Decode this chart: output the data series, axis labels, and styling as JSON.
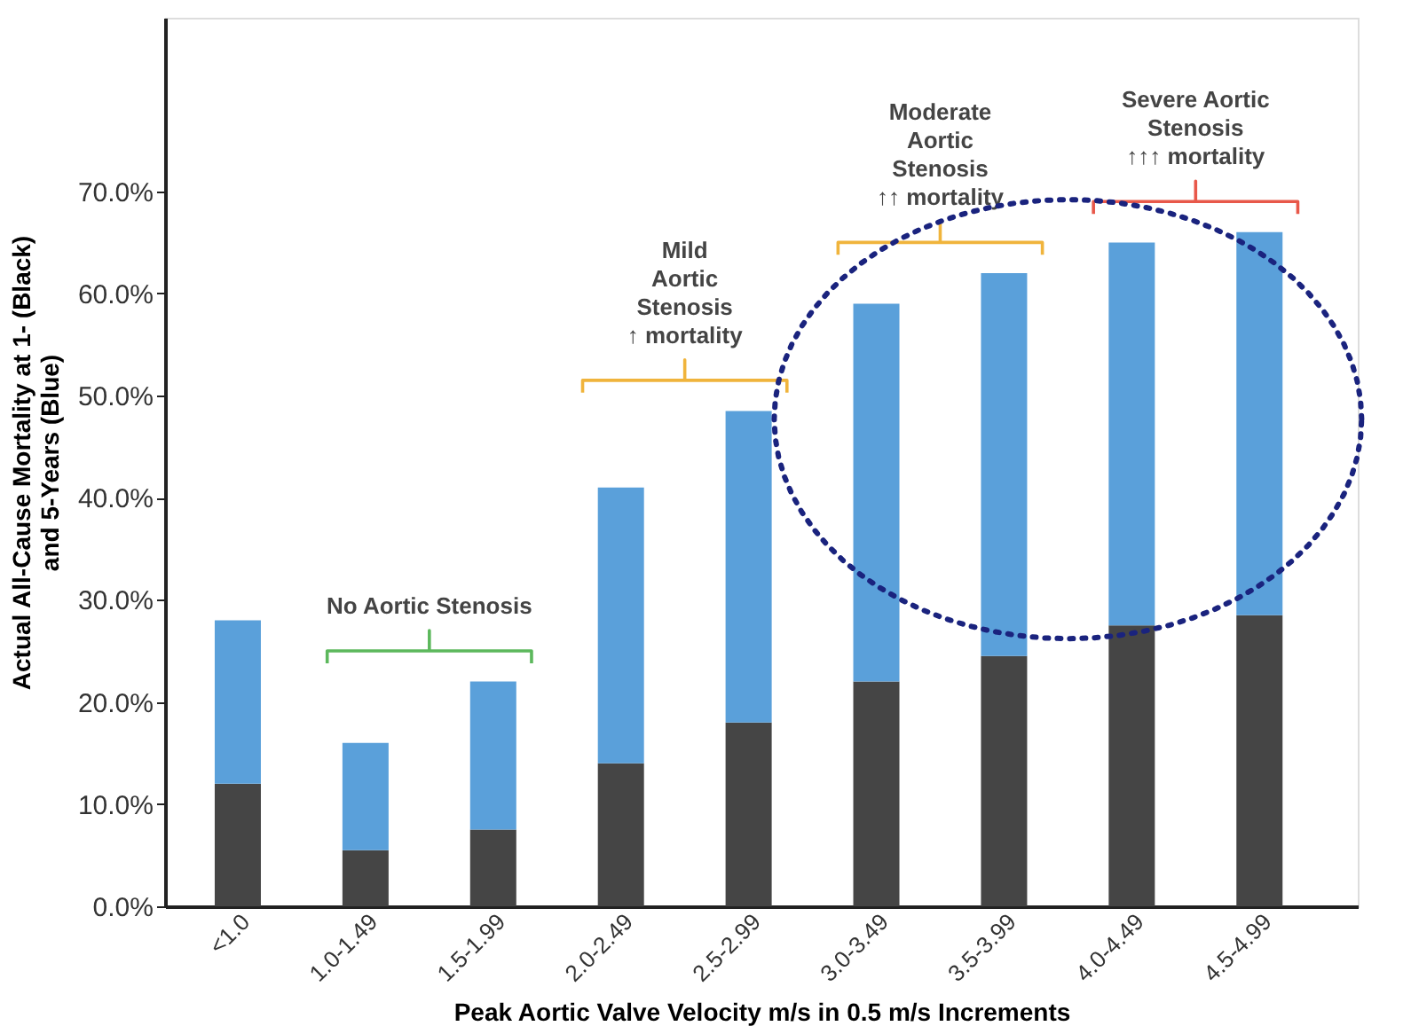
{
  "chart_data": {
    "type": "bar",
    "stacked": true,
    "categories": [
      "<1.0",
      "1.0-1.49",
      "1.5-1.99",
      "2.0-2.49",
      "2.5-2.99",
      "3.0-3.49",
      "3.5-3.99",
      "4.0-4.49",
      "4.5-4.99"
    ],
    "series": [
      {
        "color": "#454545",
        "values": [
          12,
          5.5,
          7.5,
          14,
          18,
          22,
          24.5,
          27.5,
          28.5
        ]
      },
      {
        "color": "#5aa0da",
        "values": [
          16,
          10.5,
          14.5,
          27,
          30.5,
          37,
          37.5,
          37.5,
          37.5
        ]
      }
    ],
    "xlabel": "Peak Aortic Valve Velocity m/s in 0.5 m/s Increments",
    "ylabel": "Actual All-Cause Mortality at 1- (Black)\nand 5-Years (Blue)",
    "ylim": [
      0,
      87
    ],
    "yticks": [
      {
        "value": 0,
        "label": "0.0%"
      },
      {
        "value": 10,
        "label": "10.0%"
      },
      {
        "value": 20,
        "label": "20.0%"
      },
      {
        "value": 30,
        "label": "30.0%"
      },
      {
        "value": 40,
        "label": "40.0%"
      },
      {
        "value": 50,
        "label": "50.0%"
      },
      {
        "value": 60,
        "label": "60.0%"
      },
      {
        "value": 70,
        "label": "70.0%"
      }
    ],
    "annotations": [
      "No Aortic Stenosis",
      "Mild\nAortic\nStenosis\n↑ mortality",
      "Moderate\nAortic\nStenosis\n↑↑ mortality",
      "Severe Aortic\nStenosis\n↑↑↑ mortality"
    ],
    "grid": false,
    "legend": false
  }
}
